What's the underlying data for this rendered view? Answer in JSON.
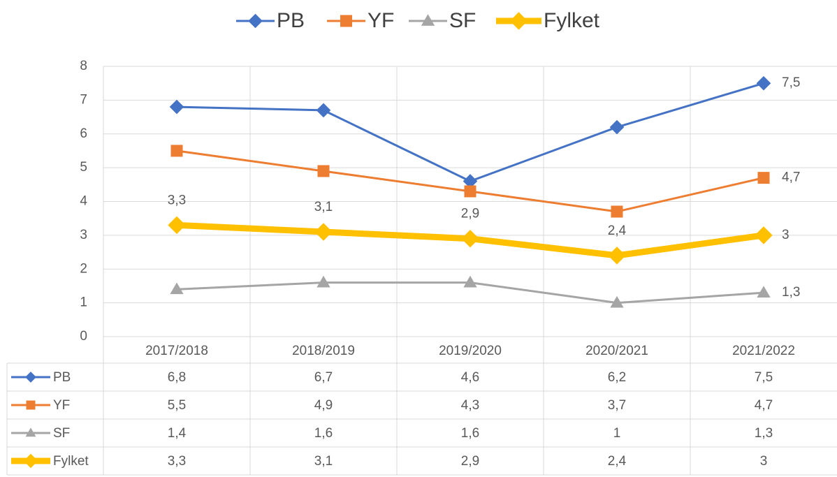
{
  "chart_data": {
    "type": "line",
    "categories": [
      "2017/2018",
      "2018/2019",
      "2019/2020",
      "2020/2021",
      "2021/2022"
    ],
    "series": [
      {
        "name": "PB",
        "color": "#4472c4",
        "marker": "diamond",
        "values": [
          6.8,
          6.7,
          4.6,
          6.2,
          7.5
        ],
        "value_labels": [
          null,
          null,
          null,
          null,
          "7,5"
        ]
      },
      {
        "name": "YF",
        "color": "#ed7d31",
        "marker": "square",
        "values": [
          5.5,
          4.9,
          4.3,
          3.7,
          4.7
        ],
        "value_labels": [
          null,
          null,
          null,
          null,
          "4,7"
        ]
      },
      {
        "name": "SF",
        "color": "#a5a5a5",
        "marker": "triangle",
        "values": [
          1.4,
          1.6,
          1.6,
          1.0,
          1.3
        ],
        "value_labels": [
          null,
          null,
          null,
          null,
          "1,3"
        ]
      },
      {
        "name": "Fylket",
        "color": "#ffc000",
        "marker": "diamond",
        "line_width": 9,
        "values": [
          3.3,
          3.1,
          2.9,
          2.4,
          3.0
        ],
        "value_labels": [
          "3,3",
          "3,1",
          "2,9",
          "2,4",
          "3"
        ]
      }
    ],
    "data_table": [
      [
        "6,8",
        "6,7",
        "4,6",
        "6,2",
        "7,5"
      ],
      [
        "5,5",
        "4,9",
        "4,3",
        "3,7",
        "4,7"
      ],
      [
        "1,4",
        "1,6",
        "1,6",
        "1",
        "1,3"
      ],
      [
        "3,3",
        "3,1",
        "2,9",
        "2,4",
        "3"
      ]
    ],
    "ylim": [
      0,
      8
    ],
    "yticks": [
      0,
      1,
      2,
      3,
      4,
      5,
      6,
      7,
      8
    ],
    "grid": true,
    "legend": "top"
  }
}
